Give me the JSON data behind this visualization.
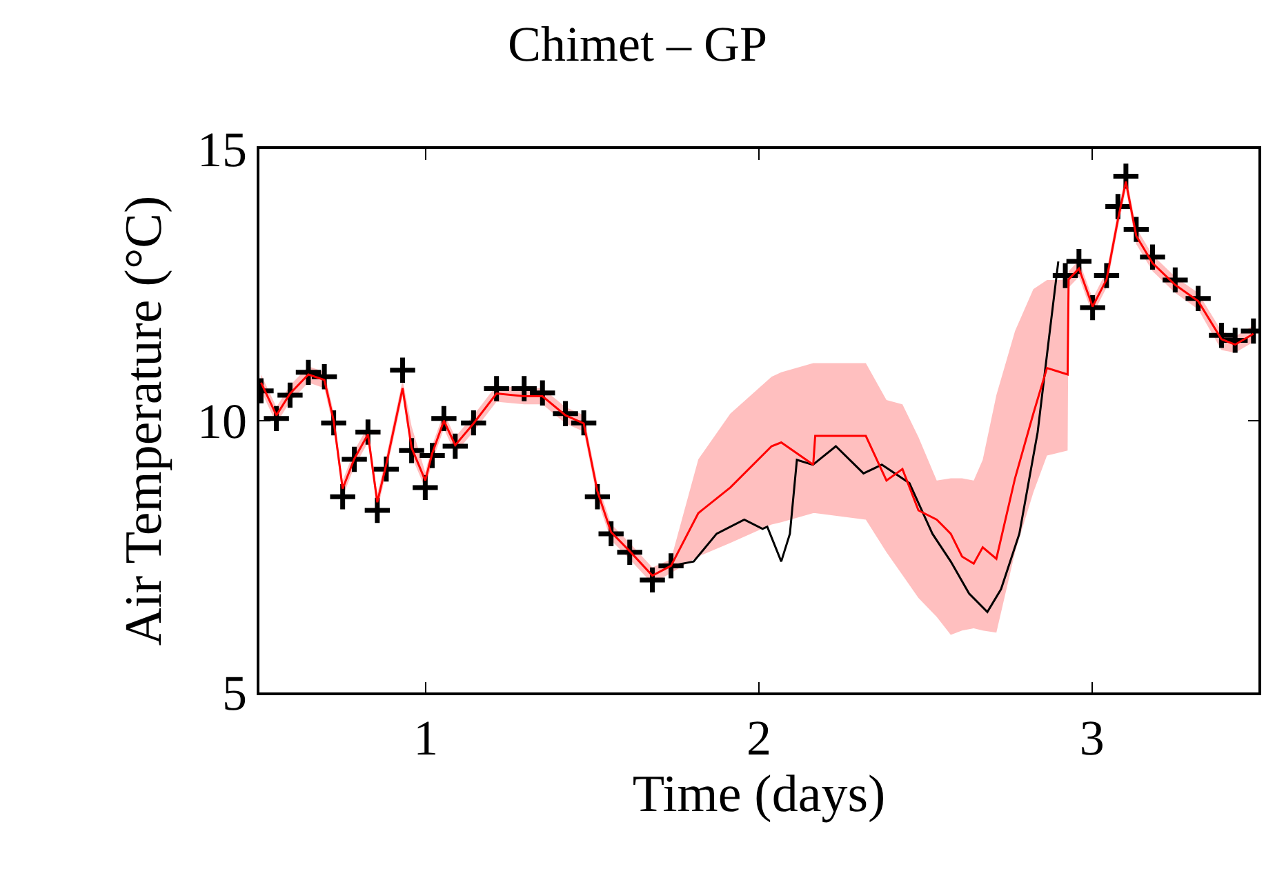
{
  "chart_data": {
    "type": "scatter",
    "title": "Chimet – GP",
    "xlabel": "Time (days)",
    "ylabel": "Air Temperature (°C)",
    "xlim": [
      0.5,
      3.5
    ],
    "xticks": [
      1,
      2,
      3
    ],
    "ylim": [
      5,
      15
    ],
    "yticks": [
      5,
      10,
      15
    ],
    "series": [
      {
        "type": "line",
        "color": "#000000",
        "marker": "none",
        "x": [
          1.736,
          1.804,
          1.873,
          1.956,
          2.011,
          2.025,
          2.067,
          2.093,
          2.114,
          2.162,
          2.231,
          2.314,
          2.369,
          2.452,
          2.521,
          2.576,
          2.631,
          2.686,
          2.727,
          2.782,
          2.837,
          2.872,
          2.899
        ],
        "values": [
          7.33,
          7.41,
          7.92,
          8.18,
          8.01,
          8.05,
          7.41,
          7.92,
          9.28,
          9.19,
          9.53,
          9.03,
          9.19,
          8.85,
          7.92,
          7.41,
          6.82,
          6.48,
          6.9,
          7.92,
          9.79,
          11.57,
          12.93
        ]
      },
      {
        "color": "#000000",
        "marker": "cross",
        "x": [
          0.505,
          0.551,
          0.592,
          0.647,
          0.695,
          0.723,
          0.75,
          0.785,
          0.826,
          0.854,
          0.881,
          0.93,
          0.957,
          0.998,
          1.019,
          1.054,
          1.088,
          1.143,
          1.212,
          1.295,
          1.35,
          1.419,
          1.474,
          1.515,
          1.556,
          1.612,
          1.68,
          1.736,
          2.92,
          2.961,
          3.002,
          3.044,
          3.078,
          3.102,
          3.133,
          3.182,
          3.25,
          3.319,
          3.389,
          3.43,
          3.485
        ],
        "values": [
          10.55,
          10.04,
          10.47,
          10.89,
          10.81,
          9.96,
          8.6,
          9.29,
          9.79,
          8.35,
          9.11,
          10.93,
          9.45,
          8.77,
          9.36,
          10.04,
          9.53,
          9.96,
          10.59,
          10.59,
          10.51,
          10.13,
          9.96,
          8.6,
          7.92,
          7.58,
          7.07,
          7.33,
          12.67,
          12.93,
          12.08,
          12.67,
          13.94,
          14.5,
          13.52,
          13.01,
          12.59,
          12.25,
          11.57,
          11.48,
          11.65
        ]
      },
      {
        "type": "line",
        "color": "#ff0000",
        "marker": "none",
        "x": [
          0.505,
          0.551,
          0.592,
          0.647,
          0.695,
          0.723,
          0.75,
          0.785,
          0.826,
          0.854,
          0.881,
          0.93,
          0.957,
          0.998,
          1.019,
          1.054,
          1.088,
          1.143,
          1.212,
          1.295,
          1.35,
          1.419,
          1.474,
          1.515,
          1.556,
          1.612,
          1.68,
          1.736,
          1.818,
          1.914,
          2.038,
          2.067,
          2.163,
          2.169,
          2.321,
          2.383,
          2.431,
          2.479,
          2.534,
          2.576,
          2.61,
          2.645,
          2.672,
          2.713,
          2.769,
          2.824,
          2.865,
          2.927,
          2.93,
          2.961,
          3.002,
          3.044,
          3.078,
          3.102,
          3.133,
          3.182,
          3.25,
          3.319,
          3.389,
          3.43,
          3.485
        ],
        "values": [
          10.7,
          10.1,
          10.5,
          10.85,
          10.75,
          10.0,
          8.75,
          9.3,
          9.75,
          8.5,
          9.2,
          10.6,
          9.5,
          8.9,
          9.4,
          10.0,
          9.55,
          9.95,
          10.5,
          10.45,
          10.45,
          10.1,
          9.95,
          8.7,
          7.95,
          7.6,
          7.15,
          7.33,
          8.3,
          8.77,
          9.53,
          9.6,
          9.19,
          9.72,
          9.72,
          8.9,
          9.11,
          8.35,
          8.18,
          7.92,
          7.5,
          7.37,
          7.67,
          7.46,
          8.94,
          10.13,
          10.97,
          10.85,
          12.6,
          12.8,
          12.1,
          12.6,
          13.7,
          14.4,
          13.4,
          12.9,
          12.5,
          12.2,
          11.5,
          11.4,
          11.6
        ],
        "lower": [
          10.55,
          9.95,
          10.35,
          10.7,
          10.6,
          9.85,
          8.6,
          9.15,
          9.6,
          8.35,
          9.05,
          10.45,
          9.35,
          8.75,
          9.25,
          9.85,
          9.4,
          9.8,
          10.35,
          10.3,
          10.3,
          9.95,
          9.8,
          8.55,
          7.8,
          7.45,
          7.0,
          7.2,
          7.5,
          7.75,
          8.09,
          8.13,
          8.3,
          8.3,
          8.18,
          7.58,
          7.16,
          6.74,
          6.39,
          6.06,
          6.14,
          6.18,
          6.14,
          6.1,
          7.58,
          8.68,
          9.36,
          9.45,
          12.45,
          12.65,
          11.95,
          12.45,
          13.55,
          14.25,
          13.25,
          12.75,
          12.35,
          12.05,
          11.3,
          11.25,
          11.45
        ],
        "upper": [
          10.85,
          10.25,
          10.65,
          11.0,
          10.9,
          10.15,
          8.9,
          9.45,
          9.9,
          8.65,
          9.35,
          10.75,
          9.9,
          9.05,
          9.55,
          10.15,
          9.7,
          10.1,
          10.65,
          10.6,
          10.6,
          10.25,
          10.1,
          8.85,
          8.1,
          7.75,
          7.3,
          7.45,
          9.29,
          10.13,
          10.81,
          10.89,
          11.06,
          11.06,
          11.06,
          10.38,
          10.3,
          9.7,
          8.9,
          8.94,
          8.94,
          8.9,
          9.28,
          10.47,
          11.65,
          12.42,
          12.59,
          12.59,
          12.75,
          12.95,
          12.25,
          12.75,
          13.85,
          14.55,
          13.55,
          13.05,
          12.65,
          12.35,
          11.65,
          11.55,
          11.75
        ]
      }
    ]
  }
}
